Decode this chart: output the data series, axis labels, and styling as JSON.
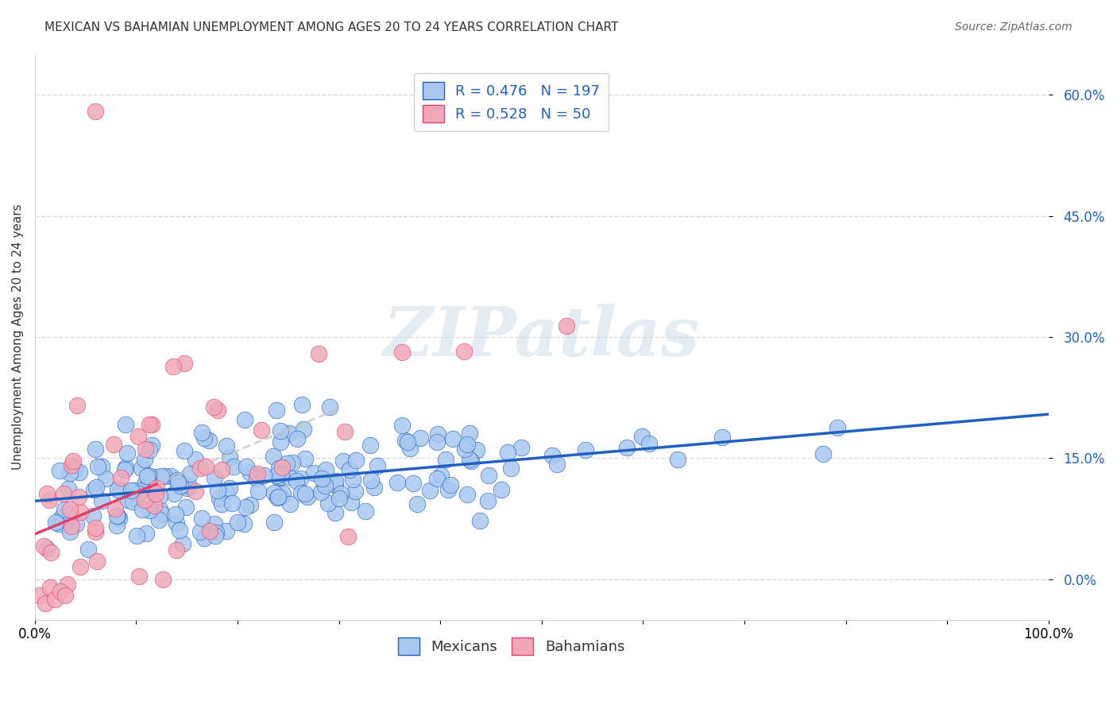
{
  "title": "MEXICAN VS BAHAMIAN UNEMPLOYMENT AMONG AGES 20 TO 24 YEARS CORRELATION CHART",
  "source": "Source: ZipAtlas.com",
  "ylabel": "Unemployment Among Ages 20 to 24 years",
  "xlabel": "",
  "xlim": [
    0.0,
    1.0
  ],
  "ylim": [
    -0.05,
    0.65
  ],
  "yticks": [
    0.0,
    0.15,
    0.3,
    0.45,
    0.6
  ],
  "ytick_labels": [
    "0.0%",
    "15.0%",
    "30.0%",
    "45.0%",
    "60.0%"
  ],
  "xticks": [
    0.0,
    0.1,
    0.2,
    0.3,
    0.4,
    0.5,
    0.6,
    0.7,
    0.8,
    0.9,
    1.0
  ],
  "xtick_labels": [
    "0.0%",
    "",
    "",
    "",
    "",
    "",
    "",
    "",
    "",
    "",
    "100.0%"
  ],
  "mexican_R": 0.476,
  "mexican_N": 197,
  "bahamian_R": 0.528,
  "bahamian_N": 50,
  "mexican_color": "#a8c8f0",
  "bahamian_color": "#f0a8b8",
  "mexican_line_color": "#2060c0",
  "bahamian_line_color": "#e04070",
  "watermark": "ZIPatlas",
  "watermark_color": "#c8d8e8",
  "background_color": "#ffffff",
  "legend_R_color": "#2060c0",
  "legend_N_color": "#e04070",
  "title_fontsize": 11,
  "axis_label_fontsize": 11
}
